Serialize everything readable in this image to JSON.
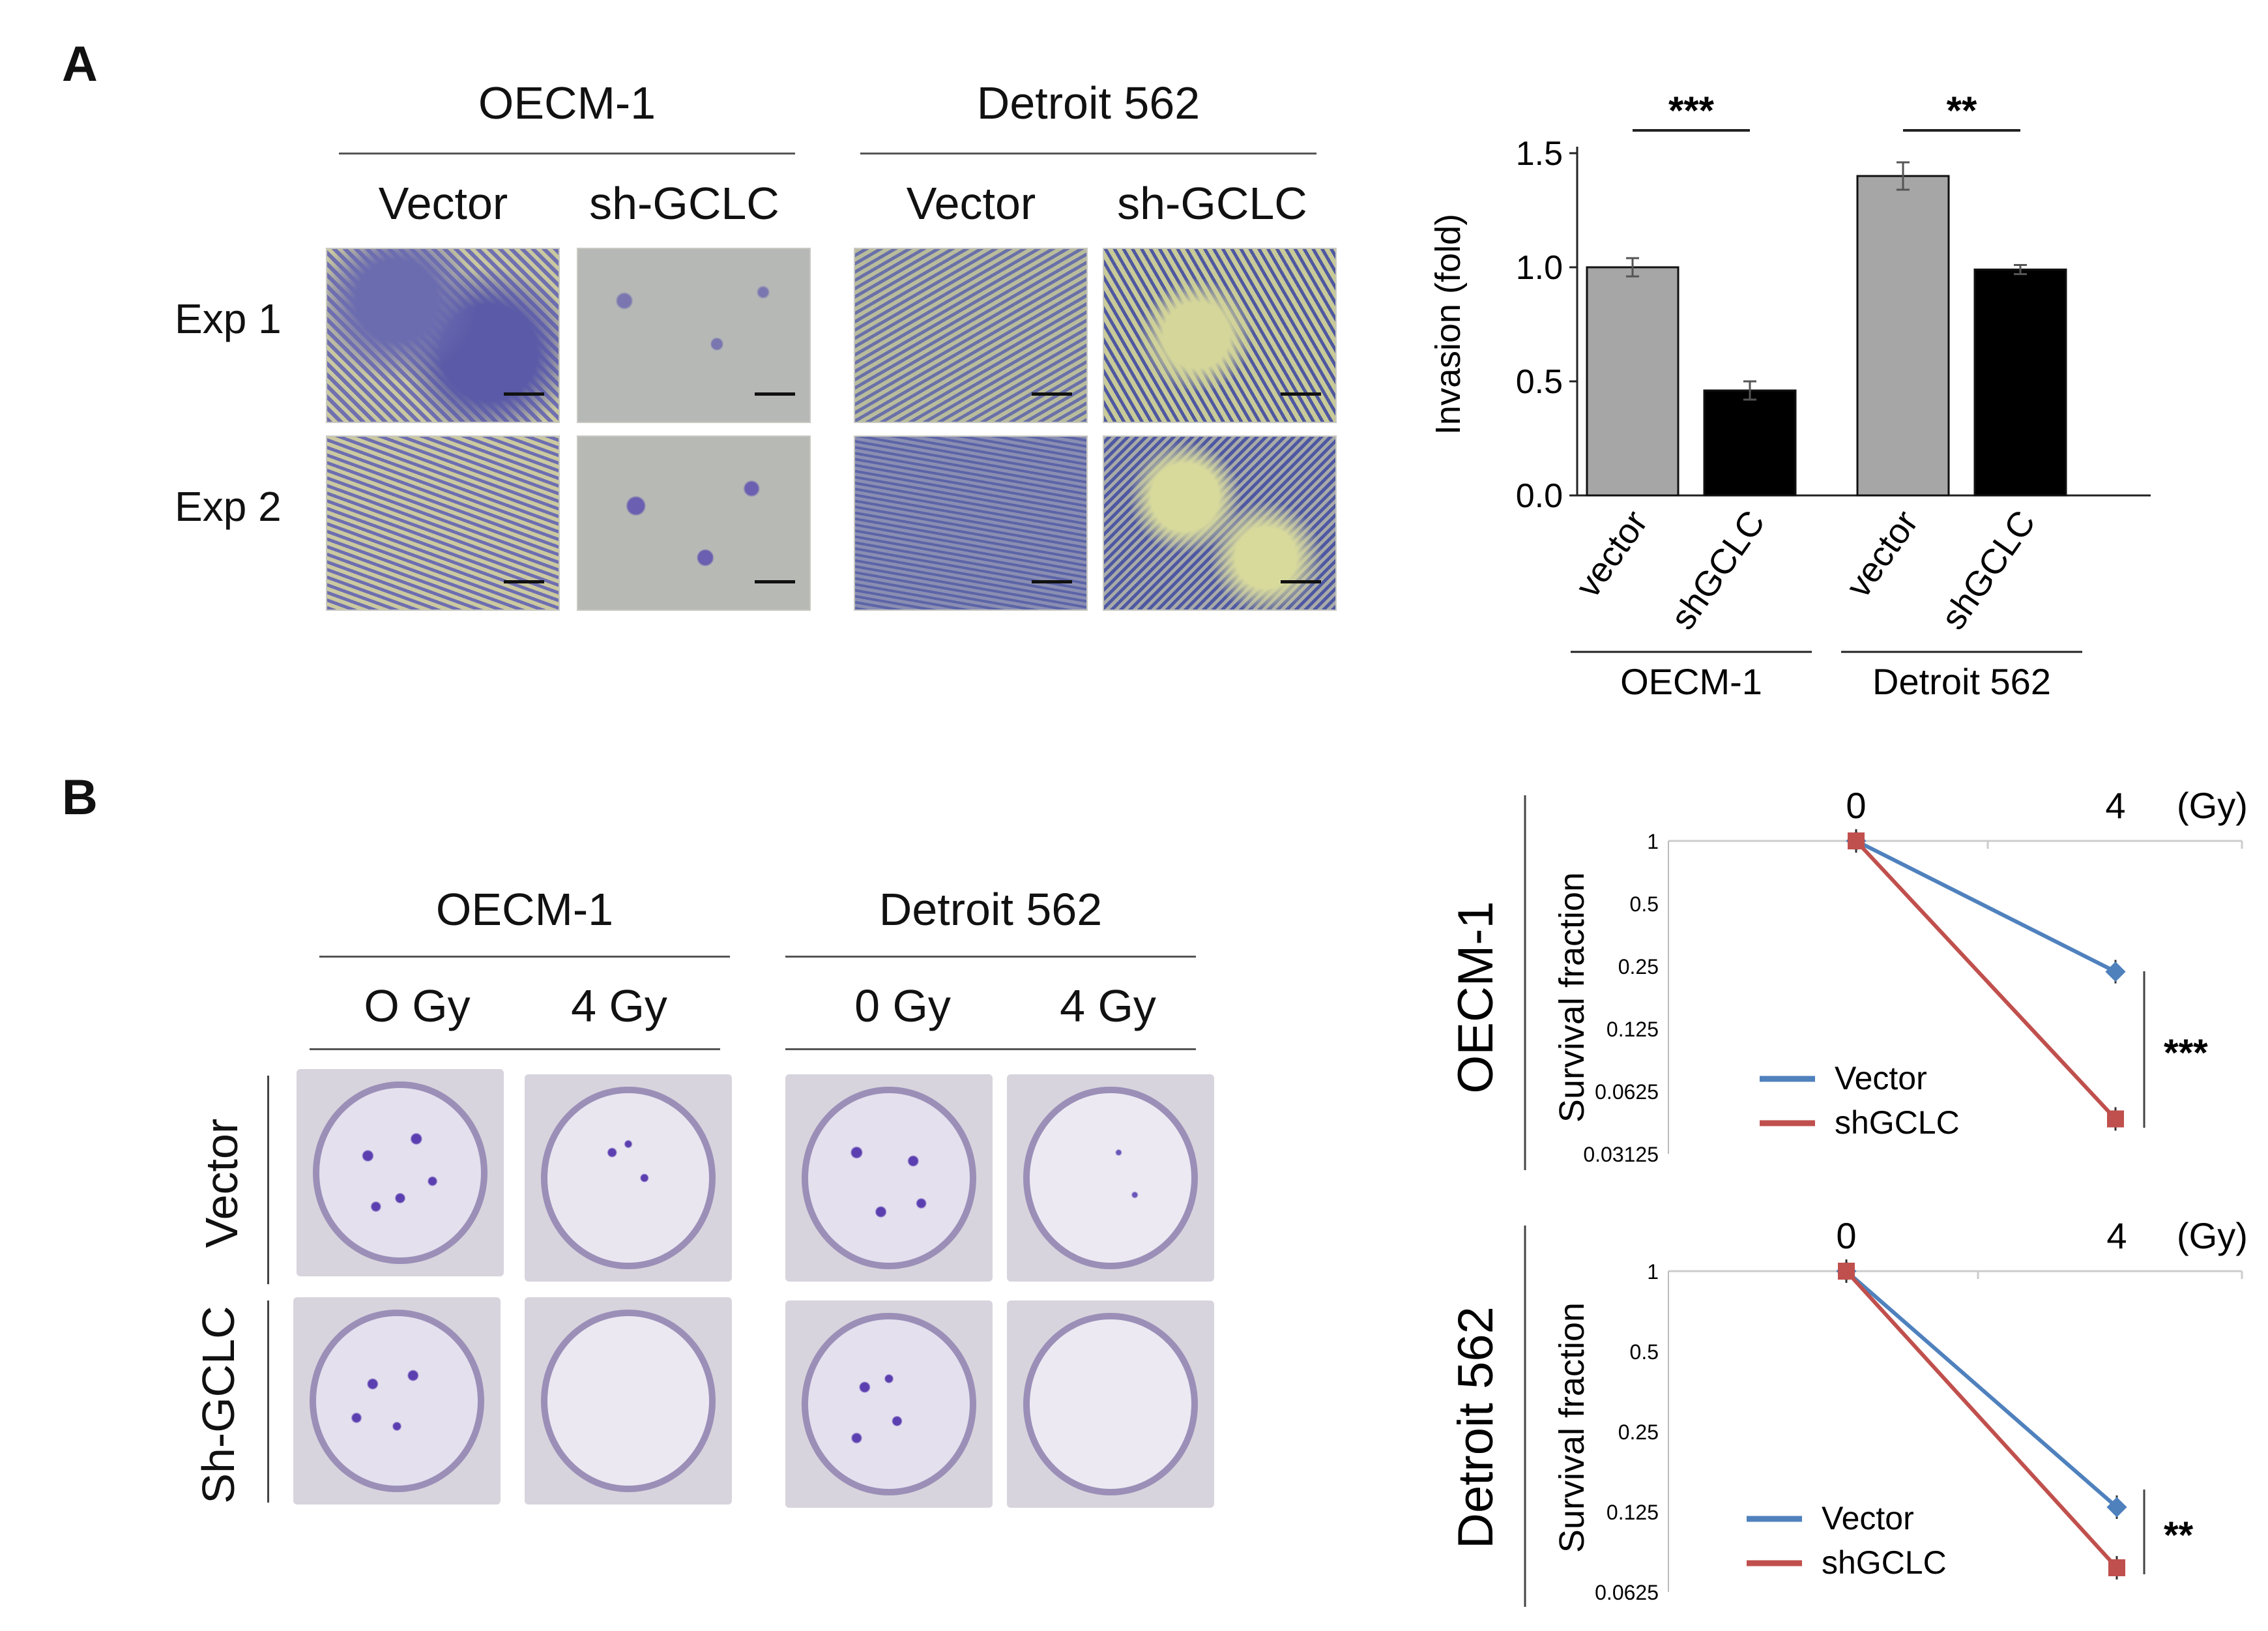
{
  "panel_a": {
    "letter": "A",
    "groups": [
      {
        "title": "OECM-1",
        "cols": [
          "Vector",
          "sh-GCLC"
        ]
      },
      {
        "title": "Detroit 562",
        "cols": [
          "Vector",
          "sh-GCLC"
        ]
      }
    ],
    "rows": [
      "Exp 1",
      "Exp 2"
    ]
  },
  "panel_b": {
    "letter": "B",
    "groups": [
      {
        "title": "OECM-1",
        "cols": [
          "O Gy",
          "4 Gy"
        ]
      },
      {
        "title": "Detroit 562",
        "cols": [
          "0 Gy",
          "4 Gy"
        ]
      }
    ],
    "rows": [
      "Vector",
      "Sh-GCLC"
    ]
  },
  "colors": {
    "vector_line": "#4f81bd",
    "shgclc_line": "#c0504d",
    "bar_vector": "#a6a6a6",
    "bar_shgclc": "#000000",
    "micro_bg": "#c9c8a8",
    "micro_stain": "#5a5aa8",
    "colony": "#5b3fb0"
  },
  "chart_data": [
    {
      "type": "bar",
      "ylabel": "Invasion (fold)",
      "yticks": [
        "0.0",
        "0.5",
        "1.0",
        "1.5"
      ],
      "ylim": [
        0,
        1.5
      ],
      "categories": [
        "vector",
        "shGCLC",
        "vector",
        "shGCLC"
      ],
      "groups": [
        "OECM-1",
        "Detroit 562"
      ],
      "values": [
        1.0,
        0.46,
        1.4,
        0.99
      ],
      "errors": [
        0.04,
        0.04,
        0.06,
        0.02
      ],
      "significance": [
        "***",
        "**"
      ]
    },
    {
      "type": "line",
      "title": "OECM-1",
      "x_top_ticks": [
        "0",
        "4"
      ],
      "x_unit": "(Gy)",
      "ylabel": "Survival fraction",
      "yscale": "log2",
      "yticks": [
        "1",
        "0.5",
        "0.25",
        "0.125",
        "0.0625",
        "0.03125"
      ],
      "x": [
        0,
        4
      ],
      "series": [
        {
          "name": "Vector",
          "values": [
            1,
            0.235
          ]
        },
        {
          "name": "shGCLC",
          "values": [
            1,
            0.046
          ]
        }
      ],
      "significance": "***"
    },
    {
      "type": "line",
      "title": "Detroit 562",
      "x_top_ticks": [
        "0",
        "4"
      ],
      "x_unit": "(Gy)",
      "ylabel": "Survival fraction",
      "yscale": "log2",
      "yticks": [
        "1",
        "0.5",
        "0.25",
        "0.125",
        "0.0625"
      ],
      "x": [
        0,
        4
      ],
      "series": [
        {
          "name": "Vector",
          "values": [
            1,
            0.13
          ]
        },
        {
          "name": "shGCLC",
          "values": [
            1,
            0.077
          ]
        }
      ],
      "significance": "**"
    }
  ]
}
